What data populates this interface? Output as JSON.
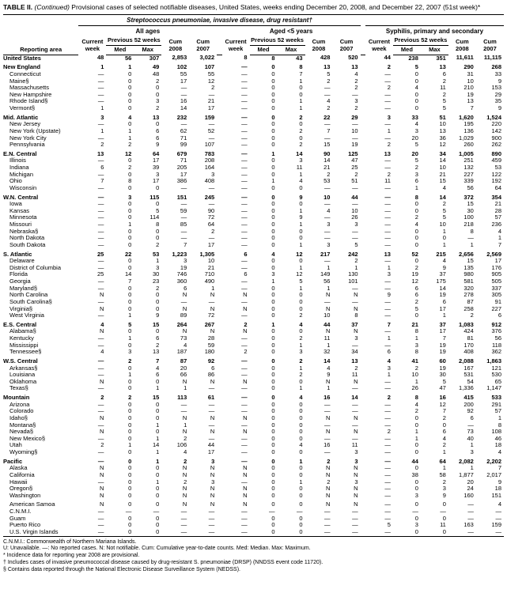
{
  "title_prefix": "TABLE II. ",
  "title_italic": "(Continued)",
  "title_rest": " Provisional cases of selected notifiable diseases, United States, weeks ending December 20, 2008, and December 22, 2007 (51st week)*",
  "supergroup_main": "Streptococcus pneumoniae, invasive disease, drug resistant†",
  "group_allages": "All ages",
  "group_aged5": "Aged <5 years",
  "group_syphilis": "Syphilis, primary and secondary",
  "sub_current_week": "Current week",
  "sub_prev52": "Previous 52 weeks",
  "sub_cum2008": "Cum 2008",
  "sub_cum2007": "Cum 2007",
  "col_reporting": "Reporting area",
  "col_med": "Med",
  "col_max": "Max",
  "rows": [
    {
      "area": "United States",
      "b": 1,
      "v": [
        "48",
        "56",
        "307",
        "2,853",
        "3,022",
        "8",
        "8",
        "43",
        "428",
        "520",
        "44",
        "238",
        "351",
        "11,611",
        "11,115"
      ]
    },
    {
      "area": "New England",
      "b": 1,
      "g": 1,
      "v": [
        "1",
        "1",
        "49",
        "102",
        "107",
        "—",
        "0",
        "8",
        "13",
        "13",
        "2",
        "5",
        "13",
        "290",
        "268"
      ]
    },
    {
      "area": "Connecticut",
      "v": [
        "—",
        "0",
        "48",
        "55",
        "55",
        "—",
        "0",
        "7",
        "5",
        "4",
        "—",
        "0",
        "6",
        "31",
        "33"
      ]
    },
    {
      "area": "Maine§",
      "v": [
        "—",
        "0",
        "2",
        "17",
        "12",
        "—",
        "0",
        "1",
        "2",
        "2",
        "—",
        "0",
        "2",
        "10",
        "9"
      ]
    },
    {
      "area": "Massachusetts",
      "v": [
        "—",
        "0",
        "0",
        "—",
        "2",
        "—",
        "0",
        "0",
        "—",
        "2",
        "2",
        "4",
        "11",
        "210",
        "153"
      ]
    },
    {
      "area": "New Hampshire",
      "v": [
        "—",
        "0",
        "0",
        "—",
        "—",
        "—",
        "0",
        "0",
        "—",
        "—",
        "—",
        "0",
        "2",
        "19",
        "29"
      ]
    },
    {
      "area": "Rhode Island§",
      "v": [
        "—",
        "0",
        "3",
        "16",
        "21",
        "—",
        "0",
        "1",
        "4",
        "3",
        "—",
        "0",
        "5",
        "13",
        "35"
      ]
    },
    {
      "area": "Vermont§",
      "v": [
        "1",
        "0",
        "2",
        "14",
        "17",
        "—",
        "0",
        "1",
        "2",
        "2",
        "—",
        "0",
        "5",
        "7",
        "9"
      ]
    },
    {
      "area": "Mid. Atlantic",
      "b": 1,
      "g": 1,
      "v": [
        "3",
        "4",
        "13",
        "232",
        "159",
        "—",
        "0",
        "2",
        "22",
        "29",
        "3",
        "33",
        "51",
        "1,620",
        "1,524"
      ]
    },
    {
      "area": "New Jersey",
      "v": [
        "—",
        "0",
        "0",
        "—",
        "—",
        "—",
        "0",
        "0",
        "—",
        "—",
        "—",
        "4",
        "10",
        "195",
        "220"
      ]
    },
    {
      "area": "New York (Upstate)",
      "v": [
        "1",
        "1",
        "6",
        "62",
        "52",
        "—",
        "0",
        "2",
        "7",
        "10",
        "1",
        "3",
        "13",
        "136",
        "142"
      ]
    },
    {
      "area": "New York City",
      "v": [
        "—",
        "1",
        "6",
        "71",
        "—",
        "—",
        "0",
        "0",
        "—",
        "—",
        "—",
        "20",
        "36",
        "1,029",
        "900"
      ]
    },
    {
      "area": "Pennsylvania",
      "v": [
        "2",
        "2",
        "9",
        "99",
        "107",
        "—",
        "0",
        "2",
        "15",
        "19",
        "2",
        "5",
        "12",
        "260",
        "262"
      ]
    },
    {
      "area": "E.N. Central",
      "b": 1,
      "g": 1,
      "v": [
        "13",
        "12",
        "64",
        "679",
        "783",
        "—",
        "1",
        "14",
        "90",
        "125",
        "13",
        "20",
        "34",
        "1,005",
        "890"
      ]
    },
    {
      "area": "Illinois",
      "v": [
        "—",
        "0",
        "17",
        "71",
        "208",
        "—",
        "0",
        "3",
        "14",
        "47",
        "—",
        "5",
        "14",
        "251",
        "459"
      ]
    },
    {
      "area": "Indiana",
      "v": [
        "6",
        "2",
        "39",
        "205",
        "164",
        "—",
        "0",
        "11",
        "21",
        "25",
        "—",
        "2",
        "10",
        "132",
        "53"
      ]
    },
    {
      "area": "Michigan",
      "v": [
        "—",
        "0",
        "3",
        "17",
        "3",
        "—",
        "0",
        "1",
        "2",
        "2",
        "2",
        "3",
        "21",
        "227",
        "122"
      ]
    },
    {
      "area": "Ohio",
      "v": [
        "7",
        "8",
        "17",
        "386",
        "408",
        "—",
        "1",
        "4",
        "53",
        "51",
        "11",
        "6",
        "15",
        "339",
        "192"
      ]
    },
    {
      "area": "Wisconsin",
      "v": [
        "—",
        "0",
        "0",
        "—",
        "—",
        "—",
        "0",
        "0",
        "—",
        "—",
        "—",
        "1",
        "4",
        "56",
        "64"
      ]
    },
    {
      "area": "W.N. Central",
      "b": 1,
      "g": 1,
      "v": [
        "—",
        "3",
        "115",
        "151",
        "245",
        "—",
        "0",
        "9",
        "10",
        "44",
        "—",
        "8",
        "14",
        "372",
        "354"
      ]
    },
    {
      "area": "Iowa",
      "v": [
        "—",
        "0",
        "0",
        "—",
        "—",
        "—",
        "0",
        "0",
        "—",
        "—",
        "—",
        "0",
        "2",
        "15",
        "21"
      ]
    },
    {
      "area": "Kansas",
      "v": [
        "—",
        "0",
        "5",
        "59",
        "90",
        "—",
        "0",
        "1",
        "4",
        "10",
        "—",
        "0",
        "5",
        "30",
        "28"
      ]
    },
    {
      "area": "Minnesota",
      "v": [
        "—",
        "0",
        "114",
        "—",
        "72",
        "—",
        "0",
        "9",
        "—",
        "26",
        "—",
        "2",
        "5",
        "100",
        "57"
      ]
    },
    {
      "area": "Missouri",
      "v": [
        "—",
        "1",
        "8",
        "85",
        "64",
        "—",
        "0",
        "1",
        "3",
        "3",
        "—",
        "4",
        "10",
        "218",
        "236"
      ]
    },
    {
      "area": "Nebraska§",
      "v": [
        "—",
        "0",
        "0",
        "—",
        "2",
        "—",
        "0",
        "0",
        "—",
        "—",
        "—",
        "0",
        "1",
        "8",
        "4"
      ]
    },
    {
      "area": "North Dakota",
      "v": [
        "—",
        "0",
        "0",
        "—",
        "—",
        "—",
        "0",
        "0",
        "—",
        "—",
        "—",
        "0",
        "0",
        "—",
        "1"
      ]
    },
    {
      "area": "South Dakota",
      "v": [
        "—",
        "0",
        "2",
        "7",
        "17",
        "—",
        "0",
        "1",
        "3",
        "5",
        "—",
        "0",
        "1",
        "1",
        "7"
      ]
    },
    {
      "area": "S. Atlantic",
      "b": 1,
      "g": 1,
      "v": [
        "25",
        "22",
        "53",
        "1,223",
        "1,305",
        "6",
        "4",
        "12",
        "217",
        "242",
        "13",
        "52",
        "215",
        "2,656",
        "2,569"
      ]
    },
    {
      "area": "Delaware",
      "v": [
        "—",
        "0",
        "1",
        "3",
        "10",
        "—",
        "0",
        "0",
        "—",
        "2",
        "—",
        "0",
        "4",
        "15",
        "17"
      ]
    },
    {
      "area": "District of Columbia",
      "v": [
        "—",
        "0",
        "3",
        "19",
        "21",
        "—",
        "0",
        "1",
        "1",
        "1",
        "1",
        "2",
        "9",
        "135",
        "176"
      ]
    },
    {
      "area": "Florida",
      "v": [
        "25",
        "14",
        "30",
        "746",
        "710",
        "6",
        "3",
        "12",
        "149",
        "130",
        "3",
        "19",
        "37",
        "980",
        "905"
      ]
    },
    {
      "area": "Georgia",
      "v": [
        "—",
        "7",
        "23",
        "360",
        "490",
        "—",
        "1",
        "5",
        "56",
        "101",
        "—",
        "12",
        "175",
        "581",
        "505"
      ]
    },
    {
      "area": "Maryland§",
      "v": [
        "—",
        "0",
        "2",
        "6",
        "1",
        "—",
        "0",
        "1",
        "1",
        "—",
        "—",
        "6",
        "14",
        "320",
        "337"
      ]
    },
    {
      "area": "North Carolina",
      "v": [
        "N",
        "0",
        "0",
        "N",
        "N",
        "N",
        "0",
        "0",
        "N",
        "N",
        "9",
        "6",
        "19",
        "278",
        "305"
      ]
    },
    {
      "area": "South Carolina§",
      "v": [
        "—",
        "0",
        "0",
        "—",
        "—",
        "—",
        "0",
        "0",
        "—",
        "—",
        "—",
        "2",
        "6",
        "87",
        "91"
      ]
    },
    {
      "area": "Virginia§",
      "v": [
        "N",
        "0",
        "0",
        "N",
        "N",
        "N",
        "0",
        "0",
        "N",
        "N",
        "—",
        "5",
        "17",
        "258",
        "227"
      ]
    },
    {
      "area": "West Virginia",
      "v": [
        "—",
        "1",
        "9",
        "89",
        "72",
        "—",
        "0",
        "2",
        "10",
        "8",
        "—",
        "0",
        "1",
        "2",
        "6"
      ]
    },
    {
      "area": "E.S. Central",
      "b": 1,
      "g": 1,
      "v": [
        "4",
        "5",
        "15",
        "264",
        "267",
        "2",
        "1",
        "4",
        "44",
        "37",
        "7",
        "21",
        "37",
        "1,083",
        "912"
      ]
    },
    {
      "area": "Alabama§",
      "v": [
        "N",
        "0",
        "0",
        "N",
        "N",
        "N",
        "0",
        "0",
        "N",
        "N",
        "—",
        "8",
        "17",
        "424",
        "376"
      ]
    },
    {
      "area": "Kentucky",
      "v": [
        "—",
        "1",
        "6",
        "73",
        "28",
        "—",
        "0",
        "2",
        "11",
        "3",
        "1",
        "1",
        "7",
        "81",
        "56"
      ]
    },
    {
      "area": "Mississippi",
      "v": [
        "—",
        "0",
        "2",
        "4",
        "59",
        "—",
        "0",
        "1",
        "1",
        "—",
        "—",
        "3",
        "19",
        "170",
        "118"
      ]
    },
    {
      "area": "Tennessee§",
      "v": [
        "4",
        "3",
        "13",
        "187",
        "180",
        "2",
        "0",
        "3",
        "32",
        "34",
        "6",
        "8",
        "19",
        "408",
        "362"
      ]
    },
    {
      "area": "W.S. Central",
      "b": 1,
      "g": 1,
      "v": [
        "—",
        "2",
        "7",
        "87",
        "92",
        "—",
        "0",
        "2",
        "14",
        "13",
        "4",
        "41",
        "60",
        "2,088",
        "1,863"
      ]
    },
    {
      "area": "Arkansas§",
      "v": [
        "—",
        "0",
        "4",
        "20",
        "6",
        "—",
        "0",
        "1",
        "4",
        "2",
        "3",
        "2",
        "19",
        "167",
        "121"
      ]
    },
    {
      "area": "Louisiana",
      "v": [
        "—",
        "1",
        "6",
        "66",
        "86",
        "—",
        "0",
        "2",
        "9",
        "11",
        "1",
        "10",
        "30",
        "531",
        "530"
      ]
    },
    {
      "area": "Oklahoma",
      "v": [
        "N",
        "0",
        "0",
        "N",
        "N",
        "N",
        "0",
        "0",
        "N",
        "N",
        "—",
        "1",
        "5",
        "54",
        "65"
      ]
    },
    {
      "area": "Texas§",
      "v": [
        "—",
        "0",
        "1",
        "1",
        "—",
        "—",
        "0",
        "1",
        "1",
        "—",
        "—",
        "26",
        "47",
        "1,336",
        "1,147"
      ]
    },
    {
      "area": "Mountain",
      "b": 1,
      "g": 1,
      "v": [
        "2",
        "2",
        "15",
        "113",
        "61",
        "—",
        "0",
        "4",
        "16",
        "14",
        "2",
        "8",
        "16",
        "415",
        "533"
      ]
    },
    {
      "area": "Arizona",
      "v": [
        "—",
        "0",
        "0",
        "—",
        "—",
        "—",
        "0",
        "0",
        "—",
        "—",
        "—",
        "4",
        "12",
        "200",
        "291"
      ]
    },
    {
      "area": "Colorado",
      "v": [
        "—",
        "0",
        "0",
        "—",
        "—",
        "—",
        "0",
        "0",
        "—",
        "—",
        "—",
        "2",
        "7",
        "92",
        "57"
      ]
    },
    {
      "area": "Idaho§",
      "v": [
        "N",
        "0",
        "0",
        "N",
        "N",
        "N",
        "0",
        "0",
        "N",
        "N",
        "—",
        "0",
        "2",
        "6",
        "1"
      ]
    },
    {
      "area": "Montana§",
      "v": [
        "—",
        "0",
        "1",
        "1",
        "—",
        "—",
        "0",
        "0",
        "—",
        "—",
        "—",
        "0",
        "0",
        "—",
        "8"
      ]
    },
    {
      "area": "Nevada§",
      "v": [
        "N",
        "0",
        "0",
        "N",
        "N",
        "N",
        "0",
        "0",
        "N",
        "N",
        "2",
        "1",
        "6",
        "73",
        "108"
      ]
    },
    {
      "area": "New Mexico§",
      "v": [
        "—",
        "0",
        "1",
        "2",
        "—",
        "—",
        "0",
        "0",
        "—",
        "—",
        "—",
        "1",
        "4",
        "40",
        "46"
      ]
    },
    {
      "area": "Utah",
      "v": [
        "2",
        "1",
        "14",
        "106",
        "44",
        "—",
        "0",
        "4",
        "16",
        "11",
        "—",
        "0",
        "2",
        "1",
        "18"
      ]
    },
    {
      "area": "Wyoming§",
      "v": [
        "—",
        "0",
        "1",
        "4",
        "17",
        "—",
        "0",
        "0",
        "—",
        "3",
        "—",
        "0",
        "1",
        "3",
        "4"
      ]
    },
    {
      "area": "Pacific",
      "b": 1,
      "g": 1,
      "v": [
        "—",
        "0",
        "1",
        "2",
        "3",
        "—",
        "0",
        "1",
        "2",
        "3",
        "—",
        "44",
        "64",
        "2,082",
        "2,202"
      ]
    },
    {
      "area": "Alaska",
      "v": [
        "N",
        "0",
        "0",
        "N",
        "N",
        "N",
        "0",
        "0",
        "N",
        "N",
        "—",
        "0",
        "1",
        "1",
        "7"
      ]
    },
    {
      "area": "California",
      "v": [
        "N",
        "0",
        "0",
        "N",
        "N",
        "N",
        "0",
        "0",
        "N",
        "N",
        "—",
        "38",
        "58",
        "1,877",
        "2,017"
      ]
    },
    {
      "area": "Hawaii",
      "v": [
        "—",
        "0",
        "1",
        "2",
        "3",
        "—",
        "0",
        "1",
        "2",
        "3",
        "—",
        "0",
        "2",
        "20",
        "9"
      ]
    },
    {
      "area": "Oregon§",
      "v": [
        "N",
        "0",
        "0",
        "N",
        "N",
        "N",
        "0",
        "0",
        "N",
        "N",
        "—",
        "0",
        "3",
        "24",
        "18"
      ]
    },
    {
      "area": "Washington",
      "v": [
        "N",
        "0",
        "0",
        "N",
        "N",
        "N",
        "0",
        "0",
        "N",
        "N",
        "—",
        "3",
        "9",
        "160",
        "151"
      ]
    },
    {
      "area": "American Samoa",
      "g": 1,
      "v": [
        "N",
        "0",
        "0",
        "N",
        "N",
        "N",
        "0",
        "0",
        "N",
        "N",
        "—",
        "0",
        "0",
        "—",
        "4"
      ]
    },
    {
      "area": "C.N.M.I.",
      "v": [
        "—",
        "—",
        "—",
        "—",
        "—",
        "—",
        "—",
        "—",
        "—",
        "—",
        "—",
        "—",
        "—",
        "—",
        "—"
      ]
    },
    {
      "area": "Guam",
      "v": [
        "—",
        "0",
        "0",
        "—",
        "—",
        "—",
        "0",
        "0",
        "—",
        "—",
        "—",
        "0",
        "0",
        "—",
        "—"
      ]
    },
    {
      "area": "Puerto Rico",
      "v": [
        "—",
        "0",
        "0",
        "—",
        "—",
        "—",
        "0",
        "0",
        "—",
        "—",
        "5",
        "3",
        "11",
        "163",
        "159"
      ]
    },
    {
      "area": "U.S. Virgin Islands",
      "v": [
        "—",
        "0",
        "0",
        "—",
        "—",
        "—",
        "0",
        "0",
        "—",
        "—",
        "—",
        "0",
        "0",
        "—",
        "—"
      ]
    }
  ],
  "footnotes": [
    "C.N.M.I.: Commonwealth of Northern Mariana Islands.",
    "U: Unavailable.    —: No reported cases.    N: Not notifiable.    Cum: Cumulative year-to-date counts.    Med: Median.    Max: Maximum.",
    "* Incidence data for reporting year 2008 are provisional.",
    "† Includes cases of invasive pneumococcal disease caused by drug-resistant S. pneumoniae (DRSP) (NNDSS event code 11720).",
    "§ Contains data reported through the National Electronic Disease Surveillance System (NEDSS)."
  ]
}
